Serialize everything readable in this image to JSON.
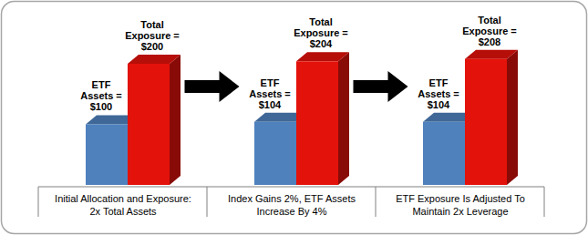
{
  "chart_data": {
    "type": "bar",
    "categories": [
      "Initial Allocation and Exposure: 2x Total Assets",
      "Index Gains 2%, ETF Assets Increase By 4%",
      "ETF Exposure Is Adjusted To Maintain 2x Leverage"
    ],
    "series": [
      {
        "color": "#4f81bd",
        "values": [
          100,
          104,
          104
        ],
        "value_labels": [
          "ETF Assets = $100",
          "ETF Assets = $104",
          "ETF Assets = $104"
        ]
      },
      {
        "color": "#e3120b",
        "values": [
          200,
          204,
          208
        ],
        "value_labels": [
          "Total Exposure = $200",
          "Total Exposure = $204",
          "Total Exposure = $208"
        ]
      }
    ],
    "ylim": [
      0,
      230
    ],
    "tick_labels": false,
    "data_labels": true
  }
}
